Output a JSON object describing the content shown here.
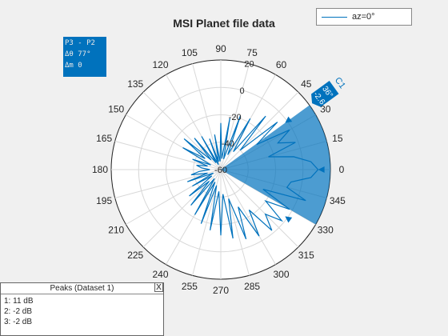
{
  "chart_data": {
    "type": "polar_line",
    "title": "MSI Planet file data",
    "angle_ticks": [
      "0",
      "15",
      "30",
      "45",
      "60",
      "75",
      "90",
      "105",
      "120",
      "135",
      "150",
      "165",
      "180",
      "195",
      "210",
      "225",
      "240",
      "255",
      "270",
      "285",
      "300",
      "315",
      "330",
      "345"
    ],
    "radial_ticks": [
      "20",
      "0",
      "-20",
      "-40",
      "-60"
    ],
    "rlim": [
      -60,
      20
    ],
    "series": [
      {
        "name": "az=0°",
        "color": "#0072bd",
        "angles_deg": [
          0,
          5,
          10,
          15,
          20,
          25,
          30,
          35,
          40,
          45,
          50,
          55,
          60,
          65,
          70,
          75,
          80,
          85,
          90,
          95,
          100,
          105,
          110,
          115,
          120,
          125,
          130,
          135,
          140,
          145,
          150,
          155,
          160,
          165,
          170,
          175,
          180,
          185,
          190,
          195,
          200,
          205,
          210,
          215,
          220,
          225,
          230,
          235,
          240,
          245,
          250,
          255,
          260,
          265,
          270,
          275,
          280,
          285,
          290,
          295,
          300,
          305,
          310,
          315,
          320,
          325,
          330,
          335,
          340,
          345,
          350,
          355,
          360
        ],
        "values_db": [
          11,
          6,
          -6,
          -24,
          -2,
          -14,
          -2,
          -28,
          -6,
          -40,
          -9,
          -44,
          -17,
          -48,
          -18,
          -52,
          -22,
          -52,
          -26,
          -54,
          -34,
          -54,
          -36,
          -56,
          -32,
          -54,
          -30,
          -50,
          -25,
          -46,
          -28,
          -52,
          -38,
          -50,
          -42,
          -46,
          -52,
          -44,
          -38,
          -50,
          -34,
          -54,
          -36,
          -52,
          -30,
          -48,
          -26,
          -52,
          -22,
          -50,
          -18,
          -48,
          -15,
          -44,
          -12,
          -42,
          -9,
          -38,
          -6,
          -30,
          -4,
          -24,
          -2,
          -14,
          -2,
          -20,
          -2,
          -26,
          6,
          -10,
          -8,
          6,
          11
        ]
      }
    ],
    "sector": {
      "label": "C1",
      "start_deg": -30,
      "end_deg": 36,
      "color": "#0072bd"
    },
    "cursor": {
      "label": "C1",
      "angle_text": "36°",
      "value_text": "-2.6"
    },
    "peak_markers_deg": [
      0,
      36,
      -36
    ],
    "delta_text": [
      "P3 - P2",
      "Δθ 77°",
      "Δm 0"
    ],
    "legend_location": "top-right"
  },
  "peaks_panel": {
    "title": "Peaks (Dataset 1)",
    "close_label": "X",
    "items": [
      "1: 11 dB",
      "2: -2 dB",
      "3: -2 dB"
    ]
  }
}
